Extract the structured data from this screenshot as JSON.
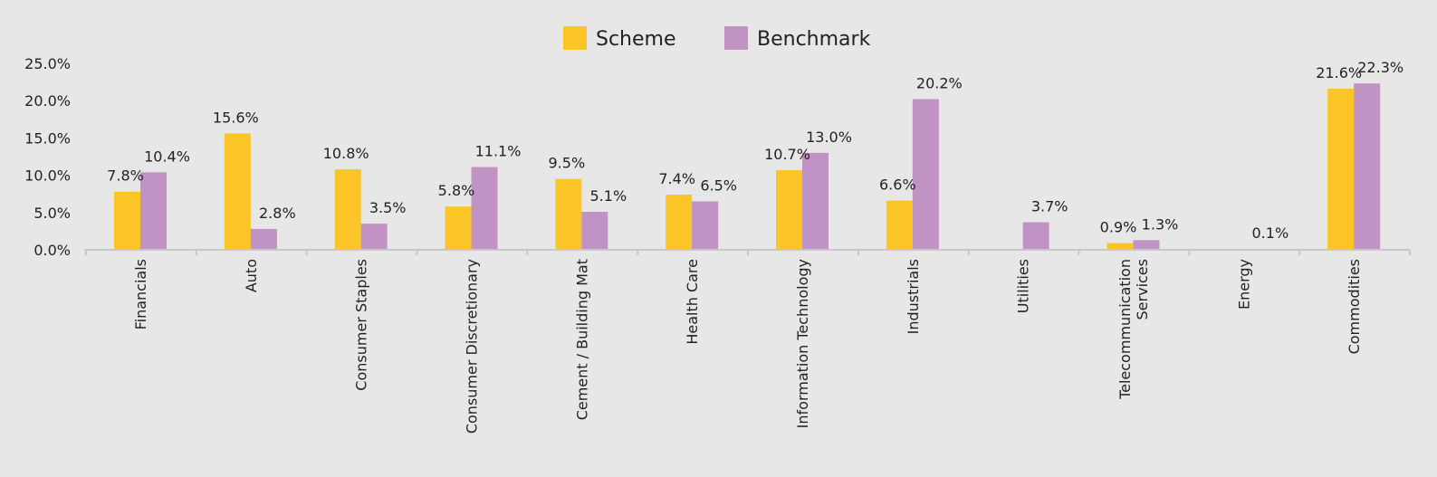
{
  "chart_data": {
    "type": "bar",
    "categories": [
      [
        "Financials"
      ],
      [
        "Auto"
      ],
      [
        "Consumer Staples"
      ],
      [
        "Consumer Discretionary"
      ],
      [
        "Cement / Building Mat"
      ],
      [
        "Health Care"
      ],
      [
        "Information Technology"
      ],
      [
        "Industrials"
      ],
      [
        "Utilities"
      ],
      [
        "Telecommunication",
        "Services"
      ],
      [
        "Energy"
      ],
      [
        "Commodities"
      ]
    ],
    "series": [
      {
        "name": "Scheme",
        "color": "#fbc527",
        "values": [
          7.8,
          15.6,
          10.8,
          5.8,
          9.5,
          7.4,
          10.7,
          6.6,
          null,
          0.9,
          null,
          21.6
        ],
        "labels": [
          "7.8%",
          "15.6%",
          "10.8%",
          "5.8%",
          "9.5%",
          "7.4%",
          "10.7%",
          "6.6%",
          "",
          "0.9%",
          "",
          "21.6%"
        ]
      },
      {
        "name": "Benchmark",
        "color": "#c093c4",
        "values": [
          10.4,
          2.8,
          3.5,
          11.1,
          5.1,
          6.5,
          13.0,
          20.2,
          3.7,
          1.3,
          0.1,
          22.3
        ],
        "labels": [
          "10.4%",
          "2.8%",
          "3.5%",
          "11.1%",
          "5.1%",
          "6.5%",
          "13.0%",
          "20.2%",
          "3.7%",
          "1.3%",
          "0.1%",
          "22.3%"
        ]
      }
    ],
    "yticks": [
      {
        "value": 0,
        "label": "0.0%"
      },
      {
        "value": 5,
        "label": "5.0%"
      },
      {
        "value": 10,
        "label": "10.0%"
      },
      {
        "value": 15,
        "label": "15.0%"
      },
      {
        "value": 20,
        "label": "20.0%"
      },
      {
        "value": 25,
        "label": "25.0%"
      }
    ],
    "ylim": [
      0,
      25
    ],
    "grid": false,
    "legend_position": "top-center",
    "axis_color": "#c8c8c8",
    "background": "#e8e7e8"
  }
}
